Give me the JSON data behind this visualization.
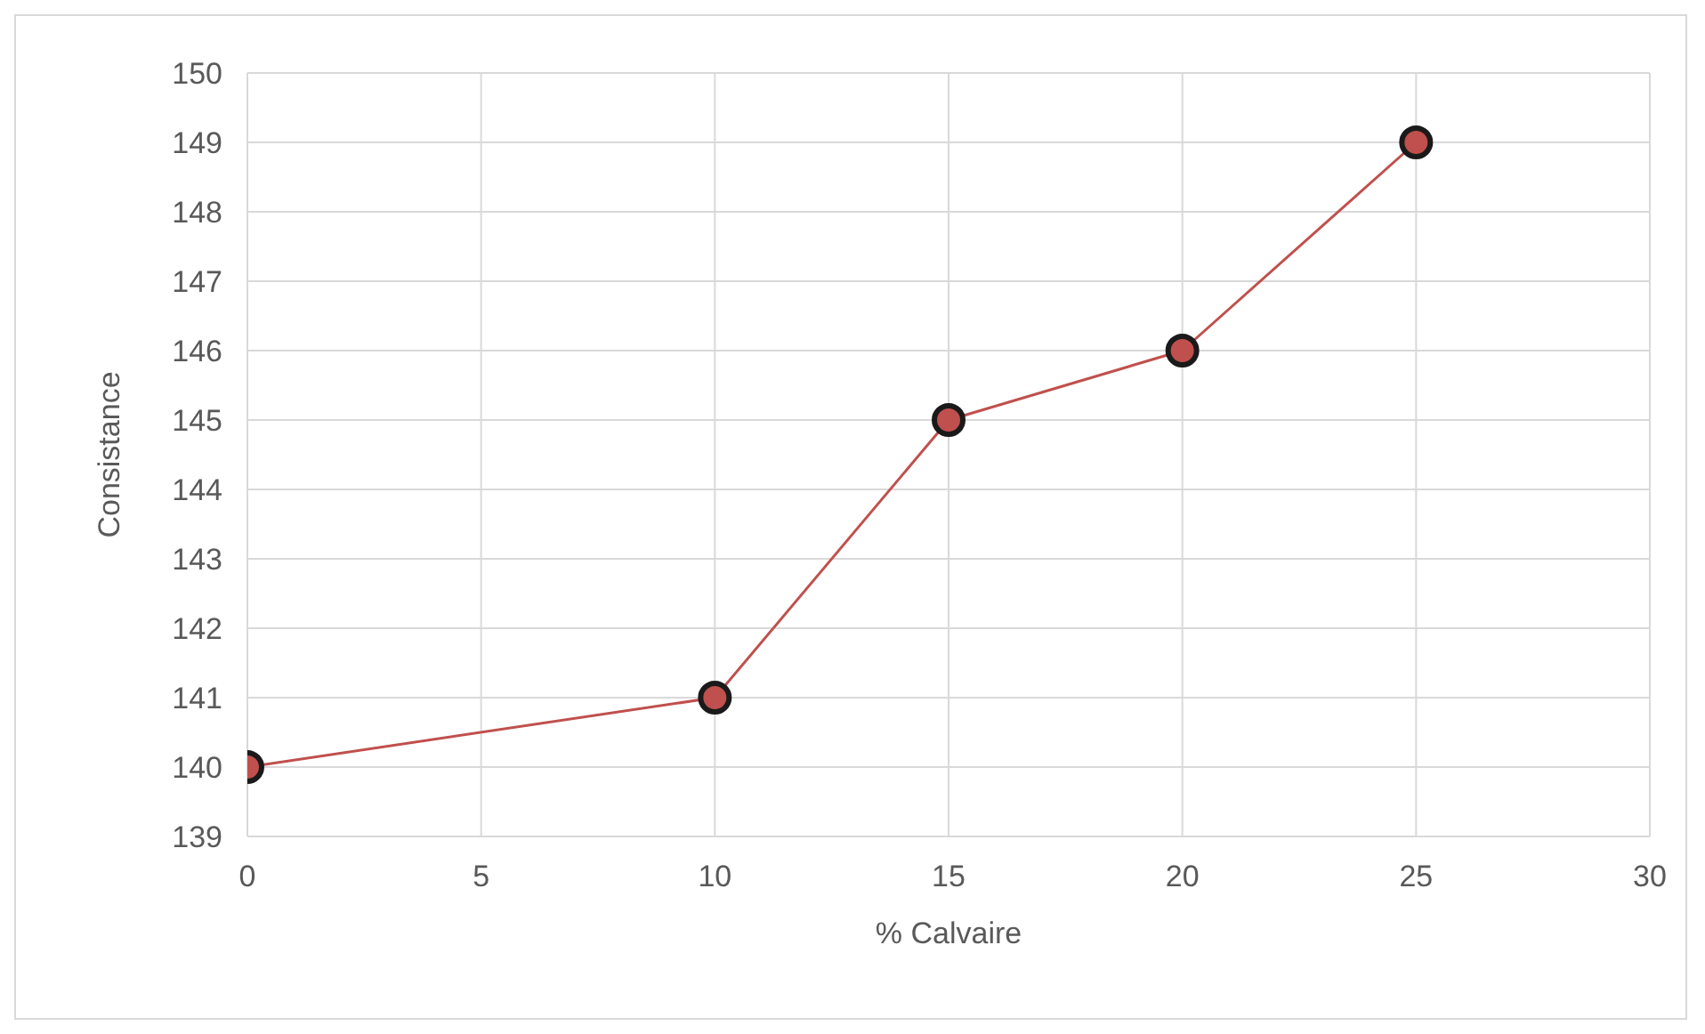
{
  "chart_data": {
    "type": "line",
    "xlabel": "% Calvaire",
    "ylabel": "Consistance",
    "x": [
      0,
      10,
      15,
      20,
      25
    ],
    "series": [
      {
        "color": "#c0504d",
        "values": [
          140,
          141,
          145,
          146,
          149
        ]
      }
    ],
    "xlim": [
      0,
      30
    ],
    "xticks": [
      0,
      5,
      10,
      15,
      20,
      25,
      30
    ],
    "ylim": [
      139,
      150
    ],
    "yticks": [
      139,
      140,
      141,
      142,
      143,
      144,
      145,
      146,
      147,
      148,
      149,
      150
    ],
    "grid": true,
    "marker": "circle",
    "line_style": "solid",
    "legend": false
  }
}
